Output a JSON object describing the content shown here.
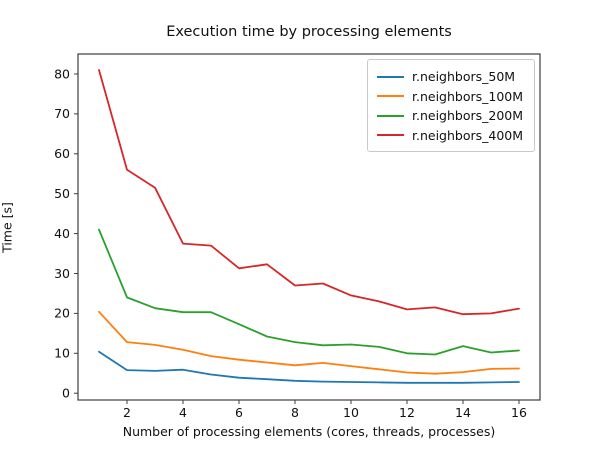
{
  "chart_data": {
    "type": "line",
    "title": "Execution time by processing elements",
    "xlabel": "Number of processing elements (cores, threads, processes)",
    "ylabel": "Time [s]",
    "x": [
      1,
      2,
      3,
      4,
      5,
      6,
      7,
      8,
      9,
      10,
      11,
      12,
      13,
      14,
      15,
      16
    ],
    "xticks": [
      2,
      4,
      6,
      8,
      10,
      12,
      14,
      16
    ],
    "yticks": [
      0,
      10,
      20,
      30,
      40,
      50,
      60,
      70,
      80
    ],
    "xlim": [
      0.25,
      16.75
    ],
    "ylim": [
      -1.7,
      85
    ],
    "grid": false,
    "legend_position": "upper right",
    "axis_color": "#3c3c3c",
    "series": [
      {
        "name": "r.neighbors_50M",
        "color": "#1f77b4",
        "values": [
          10.4,
          5.8,
          5.6,
          5.9,
          4.7,
          3.9,
          3.5,
          3.1,
          2.9,
          2.8,
          2.7,
          2.6,
          2.6,
          2.6,
          2.7,
          2.8
        ]
      },
      {
        "name": "r.neighbors_100M",
        "color": "#ff7f0e",
        "values": [
          20.4,
          12.8,
          12.1,
          10.9,
          9.3,
          8.4,
          7.7,
          7.0,
          7.6,
          6.8,
          6.0,
          5.2,
          4.9,
          5.3,
          6.1,
          6.2
        ]
      },
      {
        "name": "r.neighbors_200M",
        "color": "#2ca02c",
        "values": [
          41.0,
          24.0,
          21.3,
          20.3,
          20.3,
          17.3,
          14.2,
          12.8,
          12.0,
          12.2,
          11.6,
          10.0,
          9.7,
          11.8,
          10.2,
          10.7
        ]
      },
      {
        "name": "r.neighbors_400M",
        "color": "#d62728",
        "values": [
          81.0,
          56.0,
          51.5,
          37.5,
          37.0,
          31.3,
          32.3,
          27.0,
          27.5,
          24.5,
          23.0,
          21.0,
          21.5,
          19.8,
          20.0,
          21.2
        ]
      }
    ]
  }
}
